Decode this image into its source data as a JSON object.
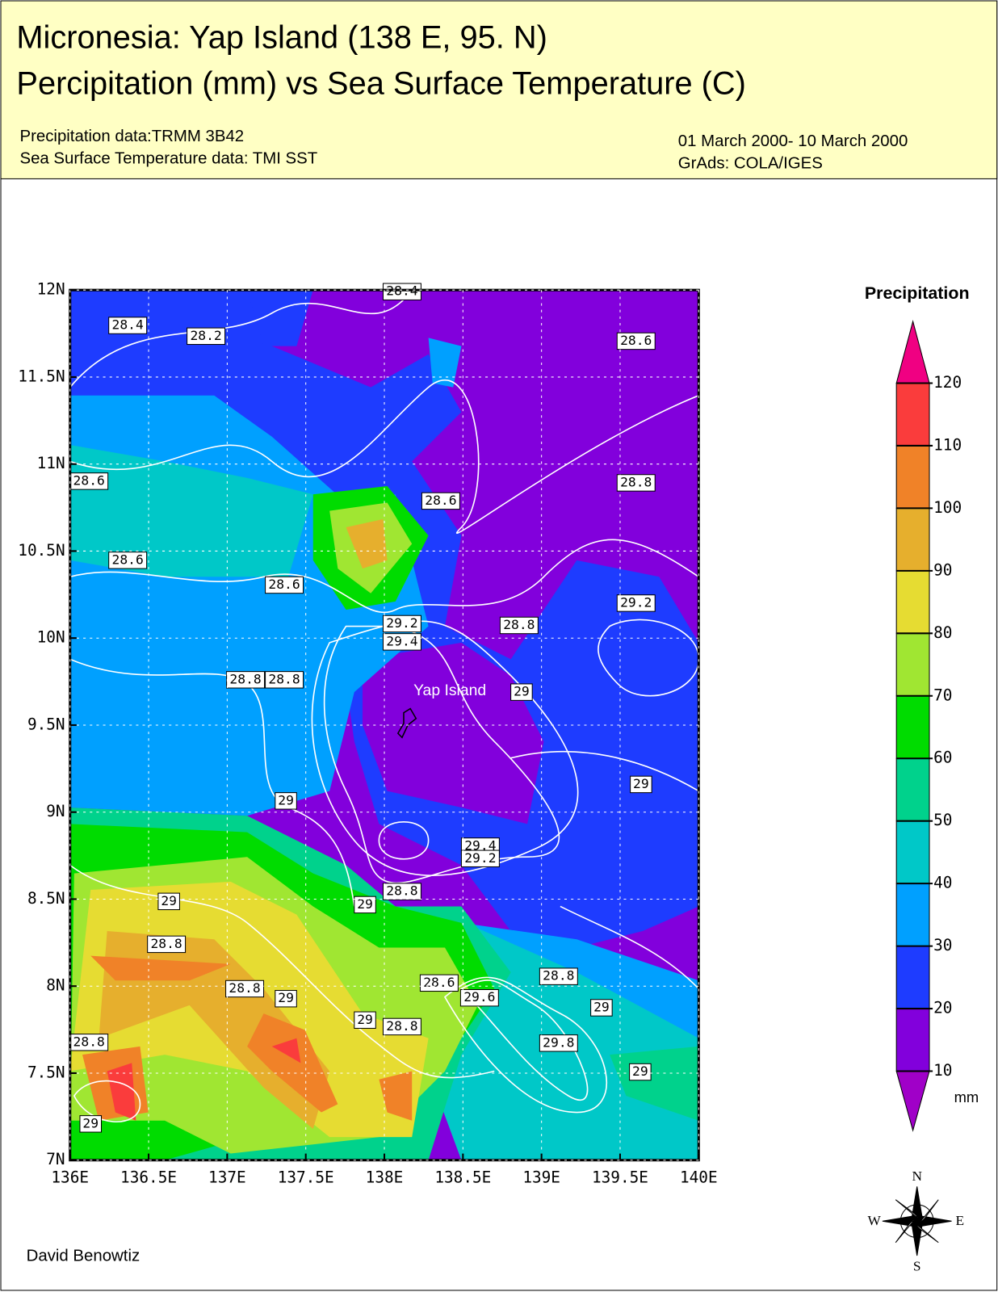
{
  "header": {
    "title_lines": [
      "Micronesia: Yap Island (138 E, 95. N)",
      "Percipitation (mm) vs Sea Surface Temperature (C)"
    ],
    "source_lines": [
      "Precipitation data:TRMM 3B42",
      "Sea Surface Temperature data: TMI SST"
    ],
    "date_lines": [
      "01 March 2000- 10 March 2000",
      "GrAds: COLA/IGES"
    ]
  },
  "map": {
    "lon_lim": [
      136,
      140
    ],
    "lat_lim": [
      7,
      12
    ],
    "lon_ticks": [
      {
        "value": 136,
        "label": "136E"
      },
      {
        "value": 136.5,
        "label": "136.5E"
      },
      {
        "value": 137,
        "label": "137E"
      },
      {
        "value": 137.5,
        "label": "137.5E"
      },
      {
        "value": 138,
        "label": "138E"
      },
      {
        "value": 138.5,
        "label": "138.5E"
      },
      {
        "value": 139,
        "label": "139E"
      },
      {
        "value": 139.5,
        "label": "139.5E"
      },
      {
        "value": 140,
        "label": "140E"
      }
    ],
    "lat_ticks": [
      {
        "value": 12,
        "label": "12N"
      },
      {
        "value": 11.5,
        "label": "11.5N"
      },
      {
        "value": 11,
        "label": "11N"
      },
      {
        "value": 10.5,
        "label": "10.5N"
      },
      {
        "value": 10,
        "label": "10N"
      },
      {
        "value": 9.5,
        "label": "9.5N"
      },
      {
        "value": 9,
        "label": "9N"
      },
      {
        "value": 8.5,
        "label": "8.5N"
      },
      {
        "value": 8,
        "label": "8N"
      },
      {
        "value": 7.5,
        "label": "7.5N"
      },
      {
        "value": 7,
        "label": "7N"
      }
    ],
    "place_label": "Yap Island",
    "contour_labels": [
      "28.4",
      "28.2",
      "28.6",
      "28.6",
      "28.8",
      "28.6",
      "28.6",
      "28.6",
      "29.2",
      "29.2",
      "29.4",
      "28.8",
      "28.8",
      "28.8",
      "29",
      "29",
      "29",
      "29.4",
      "29.2",
      "29",
      "28.8",
      "29",
      "28.8",
      "28.8",
      "28.6",
      "29.6",
      "28.8",
      "29",
      "29",
      "29",
      "28.8",
      "29.8",
      "28.8",
      "29",
      "29",
      "28.4"
    ]
  },
  "colorbar": {
    "title": "Precipitation",
    "unit": "mm",
    "levels": [
      10,
      20,
      30,
      40,
      50,
      60,
      70,
      80,
      90,
      100,
      110,
      120
    ],
    "colors": [
      "#a000c8",
      "#8200dc",
      "#1e3cff",
      "#00a0ff",
      "#00c8c8",
      "#00d28c",
      "#00dc00",
      "#a0e632",
      "#e6dc32",
      "#e6af2d",
      "#f08228",
      "#fa3c3c",
      "#f00082"
    ]
  },
  "compass": {
    "n": "N",
    "e": "E",
    "s": "S",
    "w": "W"
  },
  "footer": {
    "author": "David Benowtiz"
  }
}
